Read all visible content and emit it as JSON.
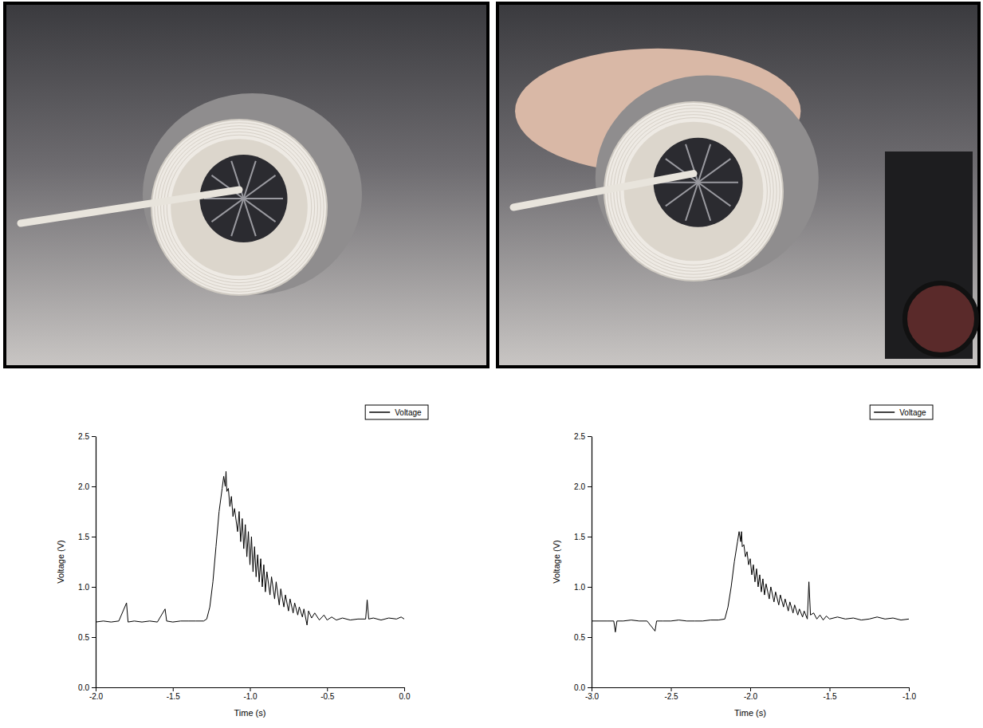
{
  "chart_data": [
    {
      "type": "line",
      "x_label": "Time (s)",
      "y_label": "Voltage (V)",
      "legend": "upper right",
      "xlim": [
        -2.0,
        0.0
      ],
      "ylim": [
        0.0,
        2.5
      ],
      "xticks": [
        {
          "value": -2.0,
          "label": "-2.0"
        },
        {
          "value": -1.5,
          "label": "-1.5"
        },
        {
          "value": -1.0,
          "label": "-1.0"
        },
        {
          "value": -0.5,
          "label": "-0.5"
        },
        {
          "value": 0.0,
          "label": "0.0"
        }
      ],
      "yticks": [
        {
          "value": 0.0,
          "label": "0.0"
        },
        {
          "value": 0.5,
          "label": "0.5"
        },
        {
          "value": 1.0,
          "label": "1.0"
        },
        {
          "value": 1.5,
          "label": "1.5"
        },
        {
          "value": 2.0,
          "label": "2.0"
        },
        {
          "value": 2.5,
          "label": "2.5"
        }
      ],
      "x": [
        -2.0,
        -1.95,
        -1.9,
        -1.85,
        -1.8,
        -1.79,
        -1.75,
        -1.7,
        -1.65,
        -1.6,
        -1.55,
        -1.54,
        -1.5,
        -1.45,
        -1.4,
        -1.35,
        -1.3,
        -1.28,
        -1.26,
        -1.24,
        -1.22,
        -1.2,
        -1.18,
        -1.17,
        -1.16,
        -1.155,
        -1.15,
        -1.14,
        -1.13,
        -1.12,
        -1.11,
        -1.1,
        -1.08,
        -1.07,
        -1.06,
        -1.05,
        -1.04,
        -1.03,
        -1.02,
        -1.01,
        -1.0,
        -0.99,
        -0.98,
        -0.97,
        -0.96,
        -0.95,
        -0.94,
        -0.93,
        -0.92,
        -0.91,
        -0.9,
        -0.89,
        -0.87,
        -0.86,
        -0.84,
        -0.83,
        -0.81,
        -0.8,
        -0.78,
        -0.77,
        -0.75,
        -0.74,
        -0.72,
        -0.71,
        -0.69,
        -0.68,
        -0.66,
        -0.65,
        -0.63,
        -0.62,
        -0.6,
        -0.58,
        -0.55,
        -0.52,
        -0.5,
        -0.47,
        -0.44,
        -0.4,
        -0.35,
        -0.3,
        -0.25,
        -0.24,
        -0.23,
        -0.2,
        -0.15,
        -0.1,
        -0.05,
        -0.02,
        0.0
      ],
      "series": [
        {
          "name": "Voltage",
          "color": "#000000",
          "values": [
            0.65,
            0.66,
            0.65,
            0.66,
            0.84,
            0.65,
            0.66,
            0.65,
            0.66,
            0.65,
            0.78,
            0.66,
            0.65,
            0.66,
            0.66,
            0.66,
            0.66,
            0.68,
            0.8,
            1.05,
            1.4,
            1.75,
            1.98,
            2.1,
            2.0,
            2.15,
            1.95,
            1.98,
            1.8,
            1.9,
            1.7,
            1.78,
            1.55,
            1.75,
            1.45,
            1.68,
            1.38,
            1.62,
            1.3,
            1.55,
            1.22,
            1.5,
            1.15,
            1.4,
            1.1,
            1.32,
            1.05,
            1.28,
            1.0,
            1.22,
            0.95,
            1.15,
            0.92,
            1.1,
            0.88,
            1.05,
            0.82,
            0.98,
            0.8,
            0.92,
            0.76,
            0.88,
            0.74,
            0.84,
            0.72,
            0.8,
            0.7,
            0.78,
            0.62,
            0.76,
            0.69,
            0.74,
            0.67,
            0.72,
            0.67,
            0.7,
            0.67,
            0.69,
            0.67,
            0.68,
            0.68,
            0.87,
            0.68,
            0.69,
            0.67,
            0.69,
            0.68,
            0.7,
            0.68
          ]
        }
      ]
    },
    {
      "type": "line",
      "x_label": "Time (s)",
      "y_label": "Voltage (V)",
      "legend": "upper right",
      "xlim": [
        -3.0,
        -1.0
      ],
      "ylim": [
        0.0,
        2.5
      ],
      "xticks": [
        {
          "value": -3.0,
          "label": "-3.0"
        },
        {
          "value": -2.5,
          "label": "-2.5"
        },
        {
          "value": -2.0,
          "label": "-2.0"
        },
        {
          "value": -1.5,
          "label": "-1.5"
        },
        {
          "value": -1.0,
          "label": "-1.0"
        }
      ],
      "yticks": [
        {
          "value": 0.0,
          "label": "0.0"
        },
        {
          "value": 0.5,
          "label": "0.5"
        },
        {
          "value": 1.0,
          "label": "1.0"
        },
        {
          "value": 1.5,
          "label": "1.5"
        },
        {
          "value": 2.0,
          "label": "2.0"
        },
        {
          "value": 2.5,
          "label": "2.5"
        }
      ],
      "x": [
        -3.0,
        -2.95,
        -2.9,
        -2.86,
        -2.85,
        -2.84,
        -2.8,
        -2.75,
        -2.7,
        -2.65,
        -2.6,
        -2.59,
        -2.55,
        -2.5,
        -2.45,
        -2.4,
        -2.35,
        -2.3,
        -2.25,
        -2.2,
        -2.16,
        -2.14,
        -2.12,
        -2.1,
        -2.08,
        -2.07,
        -2.06,
        -2.055,
        -2.05,
        -2.04,
        -2.03,
        -2.02,
        -2.01,
        -2.0,
        -1.99,
        -1.98,
        -1.97,
        -1.96,
        -1.95,
        -1.94,
        -1.93,
        -1.92,
        -1.91,
        -1.9,
        -1.88,
        -1.87,
        -1.85,
        -1.84,
        -1.82,
        -1.81,
        -1.79,
        -1.78,
        -1.76,
        -1.75,
        -1.73,
        -1.72,
        -1.7,
        -1.69,
        -1.67,
        -1.66,
        -1.64,
        -1.63,
        -1.62,
        -1.6,
        -1.58,
        -1.56,
        -1.54,
        -1.52,
        -1.5,
        -1.45,
        -1.4,
        -1.35,
        -1.3,
        -1.25,
        -1.2,
        -1.15,
        -1.1,
        -1.05,
        -1.0
      ],
      "series": [
        {
          "name": "Voltage",
          "color": "#000000",
          "values": [
            0.66,
            0.66,
            0.66,
            0.66,
            0.55,
            0.66,
            0.66,
            0.67,
            0.66,
            0.66,
            0.56,
            0.66,
            0.66,
            0.66,
            0.67,
            0.66,
            0.66,
            0.66,
            0.67,
            0.67,
            0.68,
            0.8,
            1.0,
            1.25,
            1.45,
            1.55,
            1.45,
            1.55,
            1.4,
            1.42,
            1.3,
            1.35,
            1.22,
            1.28,
            1.12,
            1.22,
            1.05,
            1.18,
            1.0,
            1.12,
            0.95,
            1.08,
            0.92,
            1.03,
            0.88,
            1.0,
            0.85,
            0.95,
            0.82,
            0.92,
            0.8,
            0.88,
            0.76,
            0.85,
            0.74,
            0.82,
            0.72,
            0.78,
            0.7,
            0.76,
            0.68,
            1.05,
            0.72,
            0.74,
            0.68,
            0.72,
            0.67,
            0.71,
            0.68,
            0.7,
            0.68,
            0.69,
            0.67,
            0.68,
            0.7,
            0.68,
            0.69,
            0.67,
            0.68
          ]
        }
      ]
    }
  ]
}
